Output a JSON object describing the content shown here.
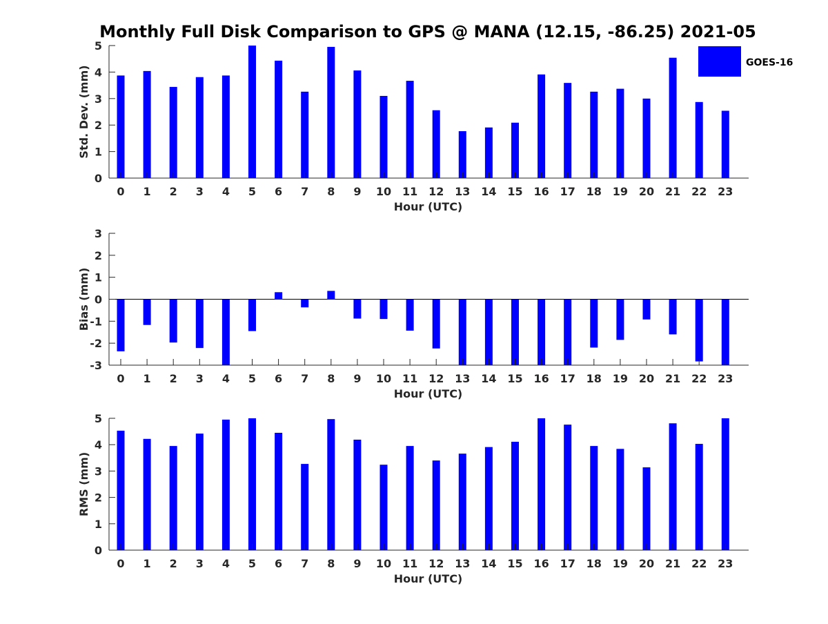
{
  "chart_data": {
    "title": "Monthly Full Disk Comparison to GPS @ MANA (12.15, -86.25) 2021-05",
    "legend": {
      "label": "GOES-16",
      "placement": "top-right",
      "color": "#0000ff"
    },
    "bar_color": "#0000ff",
    "axis_color": "#262626",
    "panels": [
      {
        "type": "bar",
        "ylabel": "Std. Dev. (mm)",
        "xlabel": "Hour (UTC)",
        "ylim": [
          0,
          5
        ],
        "yticks": [
          "0",
          "1",
          "2",
          "3",
          "4",
          "5"
        ],
        "categories": [
          "0",
          "1",
          "2",
          "3",
          "4",
          "5",
          "6",
          "7",
          "8",
          "9",
          "10",
          "11",
          "12",
          "13",
          "14",
          "15",
          "16",
          "17",
          "18",
          "19",
          "20",
          "21",
          "22",
          "23"
        ],
        "values": [
          3.87,
          4.04,
          3.44,
          3.81,
          3.87,
          5.0,
          4.43,
          3.26,
          4.95,
          4.06,
          3.1,
          3.67,
          2.56,
          1.77,
          1.91,
          2.09,
          3.91,
          3.59,
          3.26,
          3.37,
          3.0,
          4.54,
          2.87,
          2.54
        ]
      },
      {
        "type": "bar",
        "ylabel": "Bias (mm)",
        "xlabel": "Hour (UTC)",
        "ylim": [
          -3,
          3
        ],
        "yticks": [
          "-3",
          "-2",
          "-1",
          "0",
          "1",
          "2",
          "3"
        ],
        "categories": [
          "0",
          "1",
          "2",
          "3",
          "4",
          "5",
          "6",
          "7",
          "8",
          "9",
          "10",
          "11",
          "12",
          "13",
          "14",
          "15",
          "16",
          "17",
          "18",
          "19",
          "20",
          "21",
          "22",
          "23"
        ],
        "values": [
          -2.37,
          -1.17,
          -1.97,
          -2.22,
          -3.0,
          -1.45,
          0.32,
          -0.37,
          0.38,
          -0.88,
          -0.9,
          -1.43,
          -2.24,
          -3.0,
          -3.0,
          -3.0,
          -3.0,
          -3.0,
          -2.2,
          -1.85,
          -0.92,
          -1.6,
          -2.83,
          -3.0
        ]
      },
      {
        "type": "bar",
        "ylabel": "RMS (mm)",
        "xlabel": "Hour (UTC)",
        "ylim": [
          0,
          5
        ],
        "yticks": [
          "0",
          "1",
          "2",
          "3",
          "4",
          "5"
        ],
        "categories": [
          "0",
          "1",
          "2",
          "3",
          "4",
          "5",
          "6",
          "7",
          "8",
          "9",
          "10",
          "11",
          "12",
          "13",
          "14",
          "15",
          "16",
          "17",
          "18",
          "19",
          "20",
          "21",
          "22",
          "23"
        ],
        "values": [
          4.53,
          4.22,
          3.95,
          4.42,
          4.95,
          5.0,
          4.45,
          3.27,
          4.97,
          4.19,
          3.24,
          3.95,
          3.4,
          3.66,
          3.91,
          4.11,
          5.0,
          4.76,
          3.95,
          3.84,
          3.14,
          4.81,
          4.03,
          5.0
        ]
      }
    ]
  }
}
